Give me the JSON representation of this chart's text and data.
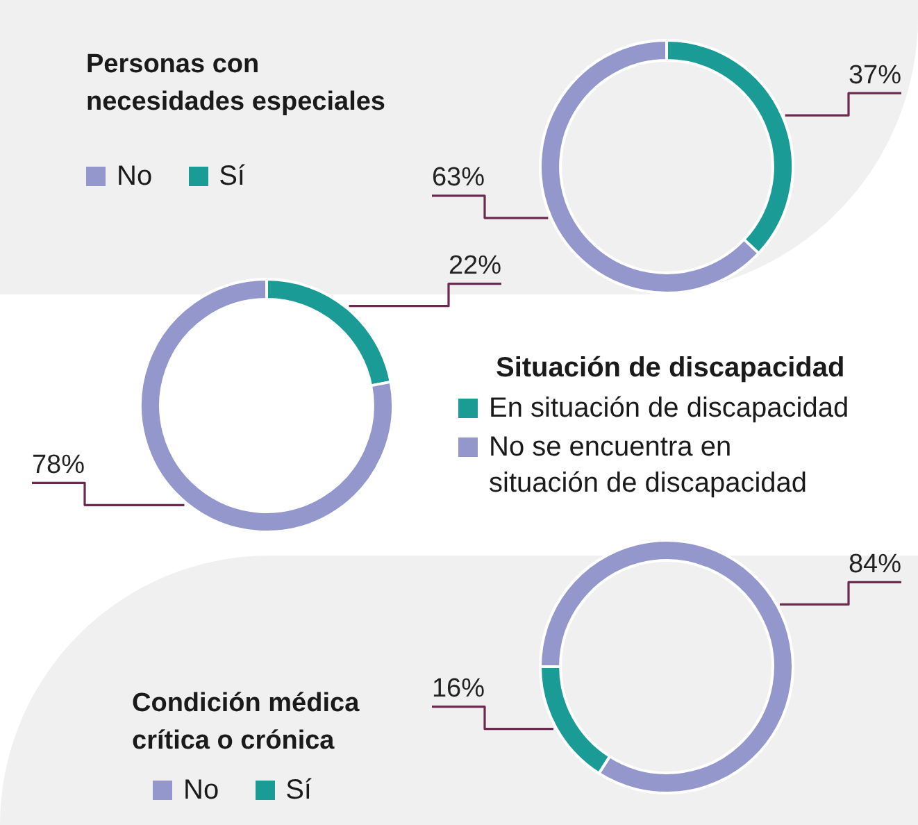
{
  "chart_data": [
    {
      "type": "donut",
      "title": "Personas con\nnecesidades especiales",
      "categories": [
        "No",
        "Sí"
      ],
      "values": [
        63,
        37
      ],
      "colors": [
        "#9497cc",
        "#1a9b95"
      ],
      "value_labels": [
        "63%",
        "37%"
      ],
      "legend": "left"
    },
    {
      "type": "donut",
      "legend_title": "Situación de discapacidad",
      "categories": [
        "En situación de discapacidad",
        "No se encuentra en\nsituación de discapacidad"
      ],
      "values": [
        22,
        78
      ],
      "colors": [
        "#1a9b95",
        "#9497cc"
      ],
      "value_labels": [
        "22%",
        "78%"
      ],
      "legend": "right"
    },
    {
      "type": "donut",
      "title": "Condición médica\ncrítica o crónica",
      "categories": [
        "No",
        "Sí"
      ],
      "values": [
        84,
        16
      ],
      "colors": [
        "#9497cc",
        "#1a9b95"
      ],
      "value_labels": [
        "84%",
        "16%"
      ],
      "legend": "left"
    }
  ]
}
